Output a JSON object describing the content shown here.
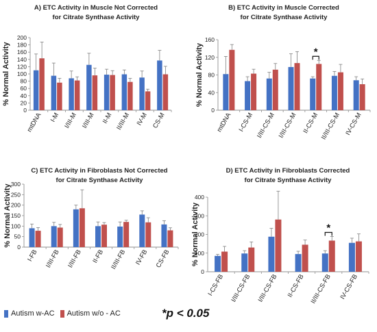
{
  "colors": {
    "series_a": "#4472C4",
    "series_b": "#C0504D",
    "error_bar": "#7f7f7f",
    "axis": "#8f8f8f",
    "text": "#222222"
  },
  "legend": {
    "series_a_label": "Autism w-AC",
    "series_b_label": "Autism w/o - AC",
    "significance_note": "*p < 0.05"
  },
  "chart_data": [
    {
      "type": "bar",
      "title_line1": "A)      ETC Activity in Muscle Not Corrected",
      "title_line2": "for Citrate Synthase Activity",
      "ylabel": "% Normal Activity",
      "ylim": [
        0,
        200
      ],
      "yticks": [
        "0",
        "20",
        "40",
        "60",
        "80",
        "100",
        "120",
        "140",
        "160",
        "180",
        "200"
      ],
      "categories": [
        "mtDNA",
        "I-M",
        "I/III-M",
        "I/III-M",
        "II-M",
        "II/III-M",
        "IV-M",
        "CS-M"
      ],
      "series": [
        {
          "values": [
            110,
            95,
            88,
            125,
            98,
            99,
            90,
            137
          ],
          "errors": [
            45,
            35,
            20,
            32,
            15,
            12,
            18,
            28
          ]
        },
        {
          "values": [
            143,
            76,
            82,
            96,
            97,
            78,
            52,
            99
          ],
          "errors": [
            45,
            12,
            10,
            20,
            12,
            10,
            6,
            22
          ]
        }
      ],
      "significance": []
    },
    {
      "type": "bar",
      "title_line1": "B) ETC Activity in Muscle Corrected",
      "title_line2": "for Citrate Synthase Activity",
      "ylabel": "% Normal Activity",
      "ylim": [
        0,
        160
      ],
      "yticks": [
        "0",
        "40",
        "80",
        "120",
        "160"
      ],
      "categories": [
        "mtDNA",
        "I-CS-M",
        "I/III-CS-M",
        "I/III-CS-M",
        "II-CS-M",
        "II/III-CS-M",
        "IV-CS-M"
      ],
      "series": [
        {
          "values": [
            82,
            66,
            72,
            98,
            72,
            78,
            68
          ],
          "errors": [
            40,
            10,
            14,
            30,
            4,
            10,
            8
          ]
        },
        {
          "values": [
            137,
            83,
            92,
            107,
            105,
            86,
            59
          ],
          "errors": [
            12,
            10,
            14,
            26,
            8,
            18,
            12
          ]
        }
      ],
      "significance": [
        4
      ]
    },
    {
      "type": "bar",
      "title_line1": "C) ETC Activity in Fibroblasts Not Corrected",
      "title_line2": "for Citrate Synthase Activity",
      "ylabel": "% Normal Activity",
      "ylim": [
        0,
        300
      ],
      "yticks": [
        "0",
        "50",
        "100",
        "150",
        "200",
        "250",
        "300"
      ],
      "categories": [
        "I-FB",
        "I/III-FB",
        "I/III-FB",
        "II-FB",
        "II/III-FB",
        "IV-FB",
        "CS-FB"
      ],
      "series": [
        {
          "values": [
            90,
            100,
            180,
            100,
            98,
            155,
            108
          ],
          "errors": [
            20,
            18,
            20,
            20,
            22,
            18,
            18
          ]
        },
        {
          "values": [
            78,
            93,
            185,
            107,
            120,
            118,
            80
          ],
          "errors": [
            15,
            15,
            88,
            10,
            8,
            22,
            12
          ]
        }
      ],
      "significance": []
    },
    {
      "type": "bar",
      "title_line1": "D) ETC Activity in Fibroblasts Corrected",
      "title_line2": "for Citrate Synthase Activity",
      "ylabel": "% Normal Activity",
      "ylim": [
        0,
        400
      ],
      "yticks": [
        "0",
        "100",
        "200",
        "300",
        "400"
      ],
      "categories": [
        "I-CS-FB",
        "I/III-CS-FB",
        "I/III-CS-FB",
        "II-CS-FB",
        "II/III-CS-FB",
        "IV-CS-FB"
      ],
      "series": [
        {
          "values": [
            85,
            98,
            188,
            95,
            98,
            155
          ],
          "errors": [
            8,
            15,
            45,
            15,
            15,
            25
          ]
        },
        {
          "values": [
            108,
            130,
            280,
            145,
            167,
            163
          ],
          "errors": [
            28,
            30,
            152,
            25,
            22,
            40
          ]
        }
      ],
      "significance": [
        4
      ]
    }
  ]
}
